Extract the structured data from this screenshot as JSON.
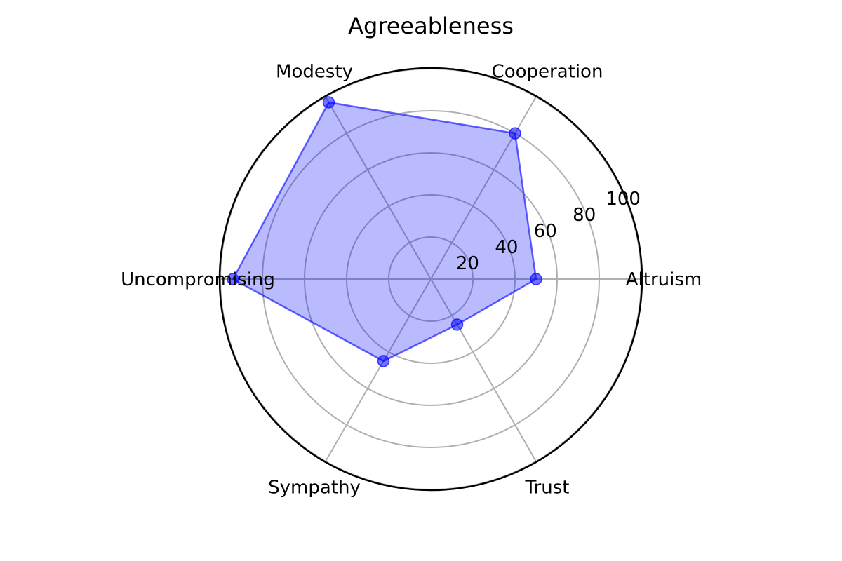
{
  "chart_data": {
    "type": "radar",
    "title": "Agreeableness",
    "categories": [
      "Altruism",
      "Cooperation",
      "Modesty",
      "Uncompromising",
      "Sympathy",
      "Trust"
    ],
    "series": [
      {
        "values": [
          50,
          80,
          97,
          94,
          45,
          25
        ],
        "color": "#0000ff",
        "fill_opacity": 0.27,
        "marker": "circle"
      }
    ],
    "rlim": [
      0,
      100
    ],
    "rticks": [
      20,
      40,
      60,
      80,
      100
    ],
    "rtick_labels": [
      "20",
      "40",
      "60",
      "80",
      "100"
    ],
    "grid": true,
    "grid_color": "#b0b0b0",
    "outline_color": "#000000"
  }
}
